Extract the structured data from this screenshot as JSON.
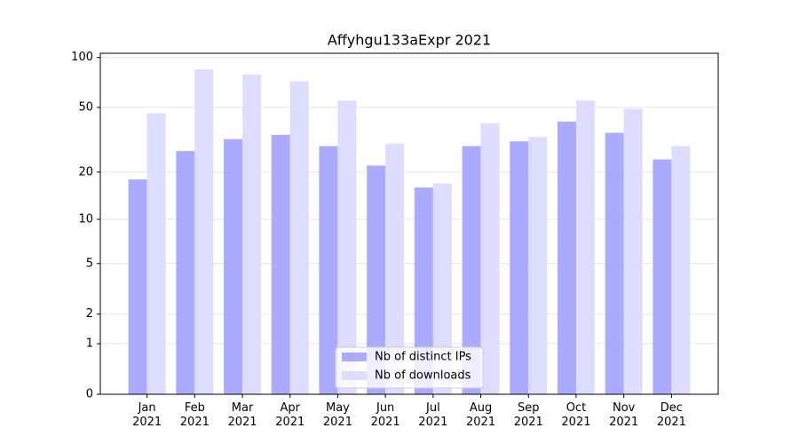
{
  "chart_data": {
    "type": "bar",
    "title": "Affyhgu133aExpr 2021",
    "categories": [
      "Jan\n2021",
      "Feb\n2021",
      "Mar\n2021",
      "Apr\n2021",
      "May\n2021",
      "Jun\n2021",
      "Jul\n2021",
      "Aug\n2021",
      "Sep\n2021",
      "Oct\n2021",
      "Nov\n2021",
      "Dec\n2021"
    ],
    "series": [
      {
        "name": "Nb of distinct IPs",
        "color": "#aaaaff",
        "values": [
          18,
          27,
          32,
          34,
          29,
          22,
          16,
          29,
          31,
          41,
          35,
          24
        ]
      },
      {
        "name": "Nb of downloads",
        "color": "#ddddff",
        "values": [
          46,
          85,
          79,
          72,
          55,
          30,
          17,
          40,
          33,
          55,
          49,
          29
        ]
      }
    ],
    "yscale": "log1p",
    "ylim": [
      0,
      106
    ],
    "yticks": [
      0,
      1,
      2,
      5,
      10,
      20,
      50,
      100
    ],
    "grid": true,
    "legend": "lower center"
  }
}
